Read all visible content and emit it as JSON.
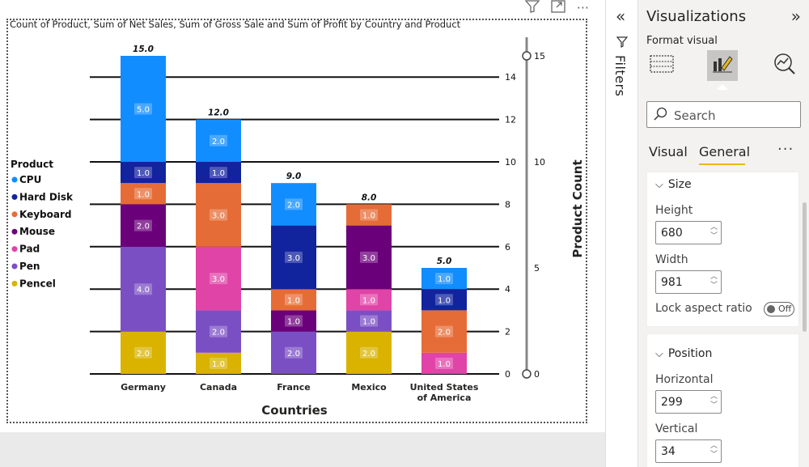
{
  "visual": {
    "title": "Count of Product, Sum of Net Sales, Sum of Gross Sale and Sum of Profit by Country and Product",
    "toolbar": {
      "filter_icon": "filter-icon",
      "focus_icon": "focus-mode-icon",
      "more": "···"
    }
  },
  "filters": {
    "label": "Filters",
    "collapse_icon": "double-chevron-left-icon"
  },
  "viz_pane": {
    "title": "Visualizations",
    "expand": "»",
    "subtitle": "Format visual",
    "search_placeholder": "Search",
    "tabs": [
      "Visual",
      "General"
    ],
    "more": "···",
    "size_section": "Size",
    "height_label": "Height",
    "height_value": "680",
    "width_label": "Width",
    "width_value": "981",
    "lock_label": "Lock aspect ratio",
    "lock_state": "Off",
    "position_section": "Position",
    "horizontal_label": "Horizontal",
    "horizontal_value": "299",
    "vertical_label": "Vertical",
    "vertical_value": "34"
  },
  "chart_data": {
    "type": "bar",
    "stacked": true,
    "title": "Count of Product, Sum of Net Sales, Sum of Gross Sale and Sum of Profit by Country and Product",
    "xlabel": "Countries",
    "ylabel": "Product Count",
    "categories": [
      "Germany",
      "Canada",
      "France",
      "Mexico",
      "United States of America"
    ],
    "category_lines": [
      [
        "Germany"
      ],
      [
        "Canada"
      ],
      [
        "France"
      ],
      [
        "Mexico"
      ],
      [
        "United States",
        "of America"
      ]
    ],
    "legend_title": "Product",
    "legend_position": "left",
    "series": [
      {
        "name": "Pencel",
        "color": "#d9b300",
        "values": [
          2,
          1,
          0,
          2,
          0
        ]
      },
      {
        "name": "Pen",
        "color": "#7b4fc4",
        "values": [
          4,
          2,
          2,
          1,
          0
        ]
      },
      {
        "name": "Pad",
        "color": "#e044a7",
        "values": [
          0,
          3,
          0,
          1,
          1
        ]
      },
      {
        "name": "Mouse",
        "color": "#6b007b",
        "values": [
          2,
          0,
          1,
          3,
          0
        ]
      },
      {
        "name": "Keyboard",
        "color": "#e66c37",
        "values": [
          1,
          3,
          1,
          1,
          2
        ]
      },
      {
        "name": "Hard Disk",
        "color": "#12239e",
        "values": [
          1,
          1,
          3,
          0,
          1
        ]
      },
      {
        "name": "CPU",
        "color": "#118dff",
        "values": [
          5,
          2,
          2,
          0,
          1
        ]
      }
    ],
    "legend_order": [
      "CPU",
      "Hard Disk",
      "Keyboard",
      "Mouse",
      "Pad",
      "Pen",
      "Pencel"
    ],
    "totals": [
      "15.0",
      "12.0",
      "9.0",
      "8.0",
      "5.0"
    ],
    "y_ticks_left": [
      0,
      2,
      4,
      6,
      8,
      10,
      12,
      14
    ],
    "y_ticks_right": [
      0,
      5,
      10,
      15
    ],
    "ylim": [
      0,
      15
    ],
    "grid": true
  }
}
